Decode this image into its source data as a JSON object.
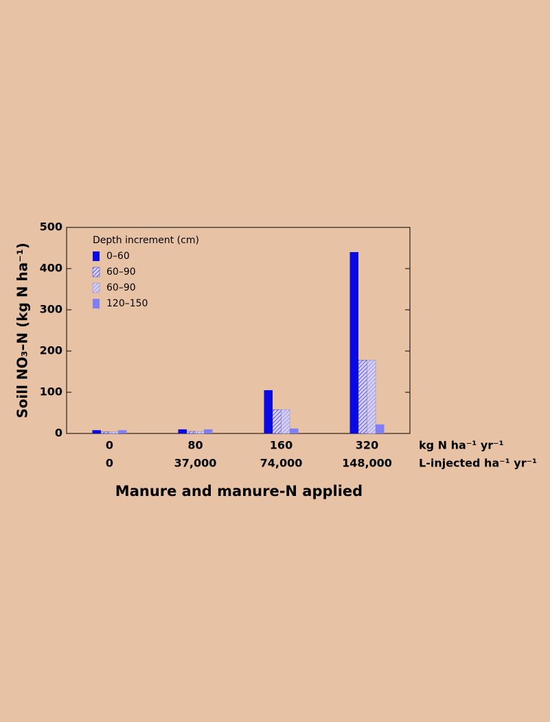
{
  "chart_data": {
    "type": "bar",
    "x_title": "Manure and manure-N applied",
    "y_title": "Soill NO₃–N (kg N ha⁻¹)",
    "legend_title": "Depth increment (cm)",
    "categories": [
      "0",
      "80",
      "160",
      "320"
    ],
    "category_unit": "kg N ha⁻¹ yr⁻¹",
    "secondary_categories": [
      "0",
      "37,000",
      "74,000",
      "148,000"
    ],
    "secondary_category_unit": "L-injected ha⁻¹ yr⁻¹",
    "series": [
      {
        "name": "0–60",
        "color": "#0a0ae0",
        "hatch": false,
        "values": [
          8,
          10,
          105,
          440
        ]
      },
      {
        "name": "60–90",
        "color": "#3c3cd8",
        "hatch": true,
        "values": [
          4,
          5,
          58,
          178
        ]
      },
      {
        "name": "60–90",
        "color": "#8a8ae8",
        "hatch": true,
        "values": [
          4,
          5,
          58,
          178
        ]
      },
      {
        "name": "120–150",
        "color": "#7e7ef6",
        "hatch": false,
        "values": [
          8,
          10,
          12,
          22
        ]
      }
    ],
    "ylim": [
      0,
      500
    ],
    "yticks": [
      0,
      100,
      200,
      300,
      400,
      500
    ],
    "grid": false
  }
}
